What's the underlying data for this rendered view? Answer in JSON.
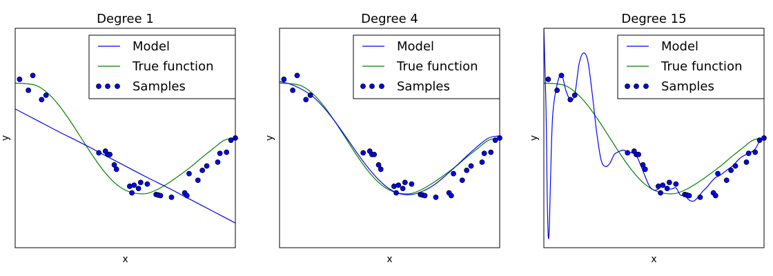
{
  "colors": {
    "model": "#0000ff",
    "true_function": "#008000",
    "samples_fill": "#0000ff",
    "samples_edge": "#000000",
    "axes": "#000000",
    "background": "#ffffff"
  },
  "chart_data": [
    {
      "type": "line",
      "title": "Degree 1",
      "xlabel": "x",
      "ylabel": "y",
      "xlim": [
        0,
        1
      ],
      "ylim": [
        -2,
        2
      ],
      "grid": false,
      "legend": {
        "position": "top-right",
        "entries": [
          "Model",
          "True function",
          "Samples"
        ]
      },
      "series": [
        {
          "name": "Model",
          "x": [
            0,
            0.1,
            0.2,
            0.3,
            0.4,
            0.5,
            0.6,
            0.7,
            0.8,
            0.9,
            1.0
          ],
          "y": [
            0.53,
            0.32,
            0.11,
            -0.09,
            -0.3,
            -0.51,
            -0.72,
            -0.92,
            -1.13,
            -1.34,
            -1.55
          ]
        },
        {
          "name": "True function",
          "x": [
            0,
            0.05,
            0.1,
            0.15,
            0.2,
            0.25,
            0.3,
            0.35,
            0.4,
            0.45,
            0.5,
            0.55,
            0.6,
            0.65,
            0.7,
            0.75,
            0.8,
            0.85,
            0.9,
            0.95,
            1.0
          ],
          "y": [
            1.0,
            0.99,
            0.95,
            0.81,
            0.59,
            0.31,
            0.0,
            -0.31,
            -0.59,
            -0.81,
            -0.95,
            -1.01,
            -1.01,
            -0.93,
            -0.81,
            -0.67,
            -0.52,
            -0.35,
            -0.19,
            -0.04,
            0.0
          ]
        },
        {
          "name": "Samples",
          "x": [
            0.02,
            0.06,
            0.08,
            0.12,
            0.14,
            0.38,
            0.41,
            0.42,
            0.43,
            0.45,
            0.46,
            0.52,
            0.53,
            0.54,
            0.56,
            0.57,
            0.6,
            0.64,
            0.65,
            0.66,
            0.71,
            0.77,
            0.78,
            0.79,
            0.83,
            0.85,
            0.87,
            0.92,
            0.93,
            0.96,
            0.98,
            1.0
          ],
          "y": [
            1.07,
            0.87,
            1.14,
            0.7,
            0.78,
            -0.27,
            -0.24,
            -0.3,
            -0.3,
            -0.49,
            -0.57,
            -0.88,
            -1.0,
            -0.86,
            -0.92,
            -0.81,
            -0.84,
            -1.03,
            -1.04,
            -1.05,
            -1.08,
            -1.0,
            -1.05,
            -0.65,
            -0.77,
            -0.59,
            -0.51,
            -0.44,
            -0.28,
            -0.26,
            -0.04,
            0.0
          ]
        }
      ]
    },
    {
      "type": "line",
      "title": "Degree 4",
      "xlabel": "x",
      "ylabel": "y",
      "xlim": [
        0,
        1
      ],
      "ylim": [
        -2,
        2
      ],
      "grid": false,
      "legend": {
        "position": "top-right",
        "entries": [
          "Model",
          "True function",
          "Samples"
        ]
      },
      "series": [
        {
          "name": "Model",
          "x": [
            0,
            0.05,
            0.1,
            0.15,
            0.2,
            0.25,
            0.3,
            0.35,
            0.4,
            0.45,
            0.5,
            0.55,
            0.6,
            0.65,
            0.7,
            0.75,
            0.8,
            0.85,
            0.9,
            0.95,
            1.0
          ],
          "y": [
            1.03,
            0.98,
            0.89,
            0.76,
            0.56,
            0.31,
            0.03,
            -0.26,
            -0.53,
            -0.76,
            -0.93,
            -1.02,
            -1.03,
            -0.97,
            -0.86,
            -0.7,
            -0.52,
            -0.33,
            -0.15,
            0.0,
            0.04
          ]
        },
        {
          "name": "True function",
          "x": [
            0,
            0.05,
            0.1,
            0.15,
            0.2,
            0.25,
            0.3,
            0.35,
            0.4,
            0.45,
            0.5,
            0.55,
            0.6,
            0.65,
            0.7,
            0.75,
            0.8,
            0.85,
            0.9,
            0.95,
            1.0
          ],
          "y": [
            1.0,
            0.99,
            0.95,
            0.81,
            0.59,
            0.31,
            0.0,
            -0.31,
            -0.59,
            -0.81,
            -0.95,
            -1.01,
            -1.01,
            -0.93,
            -0.81,
            -0.67,
            -0.52,
            -0.35,
            -0.19,
            -0.04,
            0.0
          ]
        },
        {
          "name": "Samples",
          "x": [
            0.02,
            0.06,
            0.08,
            0.12,
            0.14,
            0.38,
            0.41,
            0.42,
            0.43,
            0.45,
            0.46,
            0.52,
            0.53,
            0.54,
            0.56,
            0.57,
            0.6,
            0.64,
            0.65,
            0.66,
            0.71,
            0.77,
            0.78,
            0.79,
            0.83,
            0.85,
            0.87,
            0.92,
            0.93,
            0.96,
            0.98,
            1.0
          ],
          "y": [
            1.07,
            0.87,
            1.14,
            0.7,
            0.78,
            -0.27,
            -0.24,
            -0.3,
            -0.3,
            -0.49,
            -0.57,
            -0.88,
            -1.0,
            -0.86,
            -0.92,
            -0.81,
            -0.84,
            -1.03,
            -1.04,
            -1.05,
            -1.08,
            -1.0,
            -1.05,
            -0.65,
            -0.77,
            -0.59,
            -0.51,
            -0.44,
            -0.28,
            -0.26,
            -0.04,
            0.0
          ]
        }
      ]
    },
    {
      "type": "line",
      "title": "Degree 15",
      "xlabel": "x",
      "ylabel": "y",
      "xlim": [
        0,
        1
      ],
      "ylim": [
        -2,
        2
      ],
      "grid": false,
      "legend": {
        "position": "top-right",
        "entries": [
          "Model",
          "True function",
          "Samples"
        ]
      },
      "series": [
        {
          "name": "Model",
          "x": [
            0.0,
            0.01,
            0.015,
            0.02,
            0.025,
            0.03,
            0.04,
            0.06,
            0.08,
            0.1,
            0.12,
            0.14,
            0.16,
            0.18,
            0.2,
            0.22,
            0.24,
            0.26,
            0.28,
            0.3,
            0.32,
            0.34,
            0.36,
            0.38,
            0.4,
            0.42,
            0.44,
            0.46,
            0.48,
            0.5,
            0.52,
            0.54,
            0.56,
            0.58,
            0.6,
            0.62,
            0.64,
            0.66,
            0.68,
            0.7,
            0.72,
            0.74,
            0.76,
            0.78,
            0.8,
            0.82,
            0.84,
            0.86,
            0.88,
            0.9,
            0.92,
            0.94,
            0.96,
            0.98,
            1.0
          ],
          "y": [
            2.0,
            0.5,
            -1.0,
            -1.8,
            -1.6,
            -0.8,
            0.4,
            0.97,
            1.16,
            0.87,
            0.7,
            0.78,
            1.35,
            1.55,
            1.4,
            0.8,
            0.1,
            -0.4,
            -0.52,
            -0.46,
            -0.3,
            -0.25,
            -0.22,
            -0.25,
            -0.27,
            -0.32,
            -0.5,
            -0.7,
            -0.88,
            -0.95,
            -0.93,
            -0.86,
            -0.92,
            -0.93,
            -0.91,
            -1.04,
            -1.05,
            -1.13,
            -1.15,
            -1.08,
            -0.98,
            -0.9,
            -0.8,
            -0.72,
            -0.68,
            -0.62,
            -0.56,
            -0.5,
            -0.41,
            -0.34,
            -0.3,
            -0.26,
            -0.2,
            -0.06,
            0.0
          ]
        },
        {
          "name": "True function",
          "x": [
            0,
            0.05,
            0.1,
            0.15,
            0.2,
            0.25,
            0.3,
            0.35,
            0.4,
            0.45,
            0.5,
            0.55,
            0.6,
            0.65,
            0.7,
            0.75,
            0.8,
            0.85,
            0.9,
            0.95,
            1.0
          ],
          "y": [
            1.0,
            0.99,
            0.95,
            0.81,
            0.59,
            0.31,
            0.0,
            -0.31,
            -0.59,
            -0.81,
            -0.95,
            -1.01,
            -1.01,
            -0.93,
            -0.81,
            -0.67,
            -0.52,
            -0.35,
            -0.19,
            -0.04,
            0.0
          ]
        },
        {
          "name": "Samples",
          "x": [
            0.02,
            0.06,
            0.08,
            0.12,
            0.14,
            0.38,
            0.41,
            0.42,
            0.43,
            0.45,
            0.46,
            0.52,
            0.53,
            0.54,
            0.56,
            0.57,
            0.6,
            0.64,
            0.65,
            0.66,
            0.71,
            0.77,
            0.78,
            0.79,
            0.83,
            0.85,
            0.87,
            0.92,
            0.93,
            0.96,
            0.98,
            1.0
          ],
          "y": [
            1.07,
            0.87,
            1.14,
            0.7,
            0.78,
            -0.27,
            -0.24,
            -0.3,
            -0.3,
            -0.49,
            -0.57,
            -0.88,
            -1.0,
            -0.86,
            -0.92,
            -0.81,
            -0.84,
            -1.03,
            -1.04,
            -1.05,
            -1.08,
            -1.0,
            -1.05,
            -0.65,
            -0.77,
            -0.59,
            -0.51,
            -0.44,
            -0.28,
            -0.26,
            -0.04,
            0.0
          ]
        }
      ]
    }
  ]
}
